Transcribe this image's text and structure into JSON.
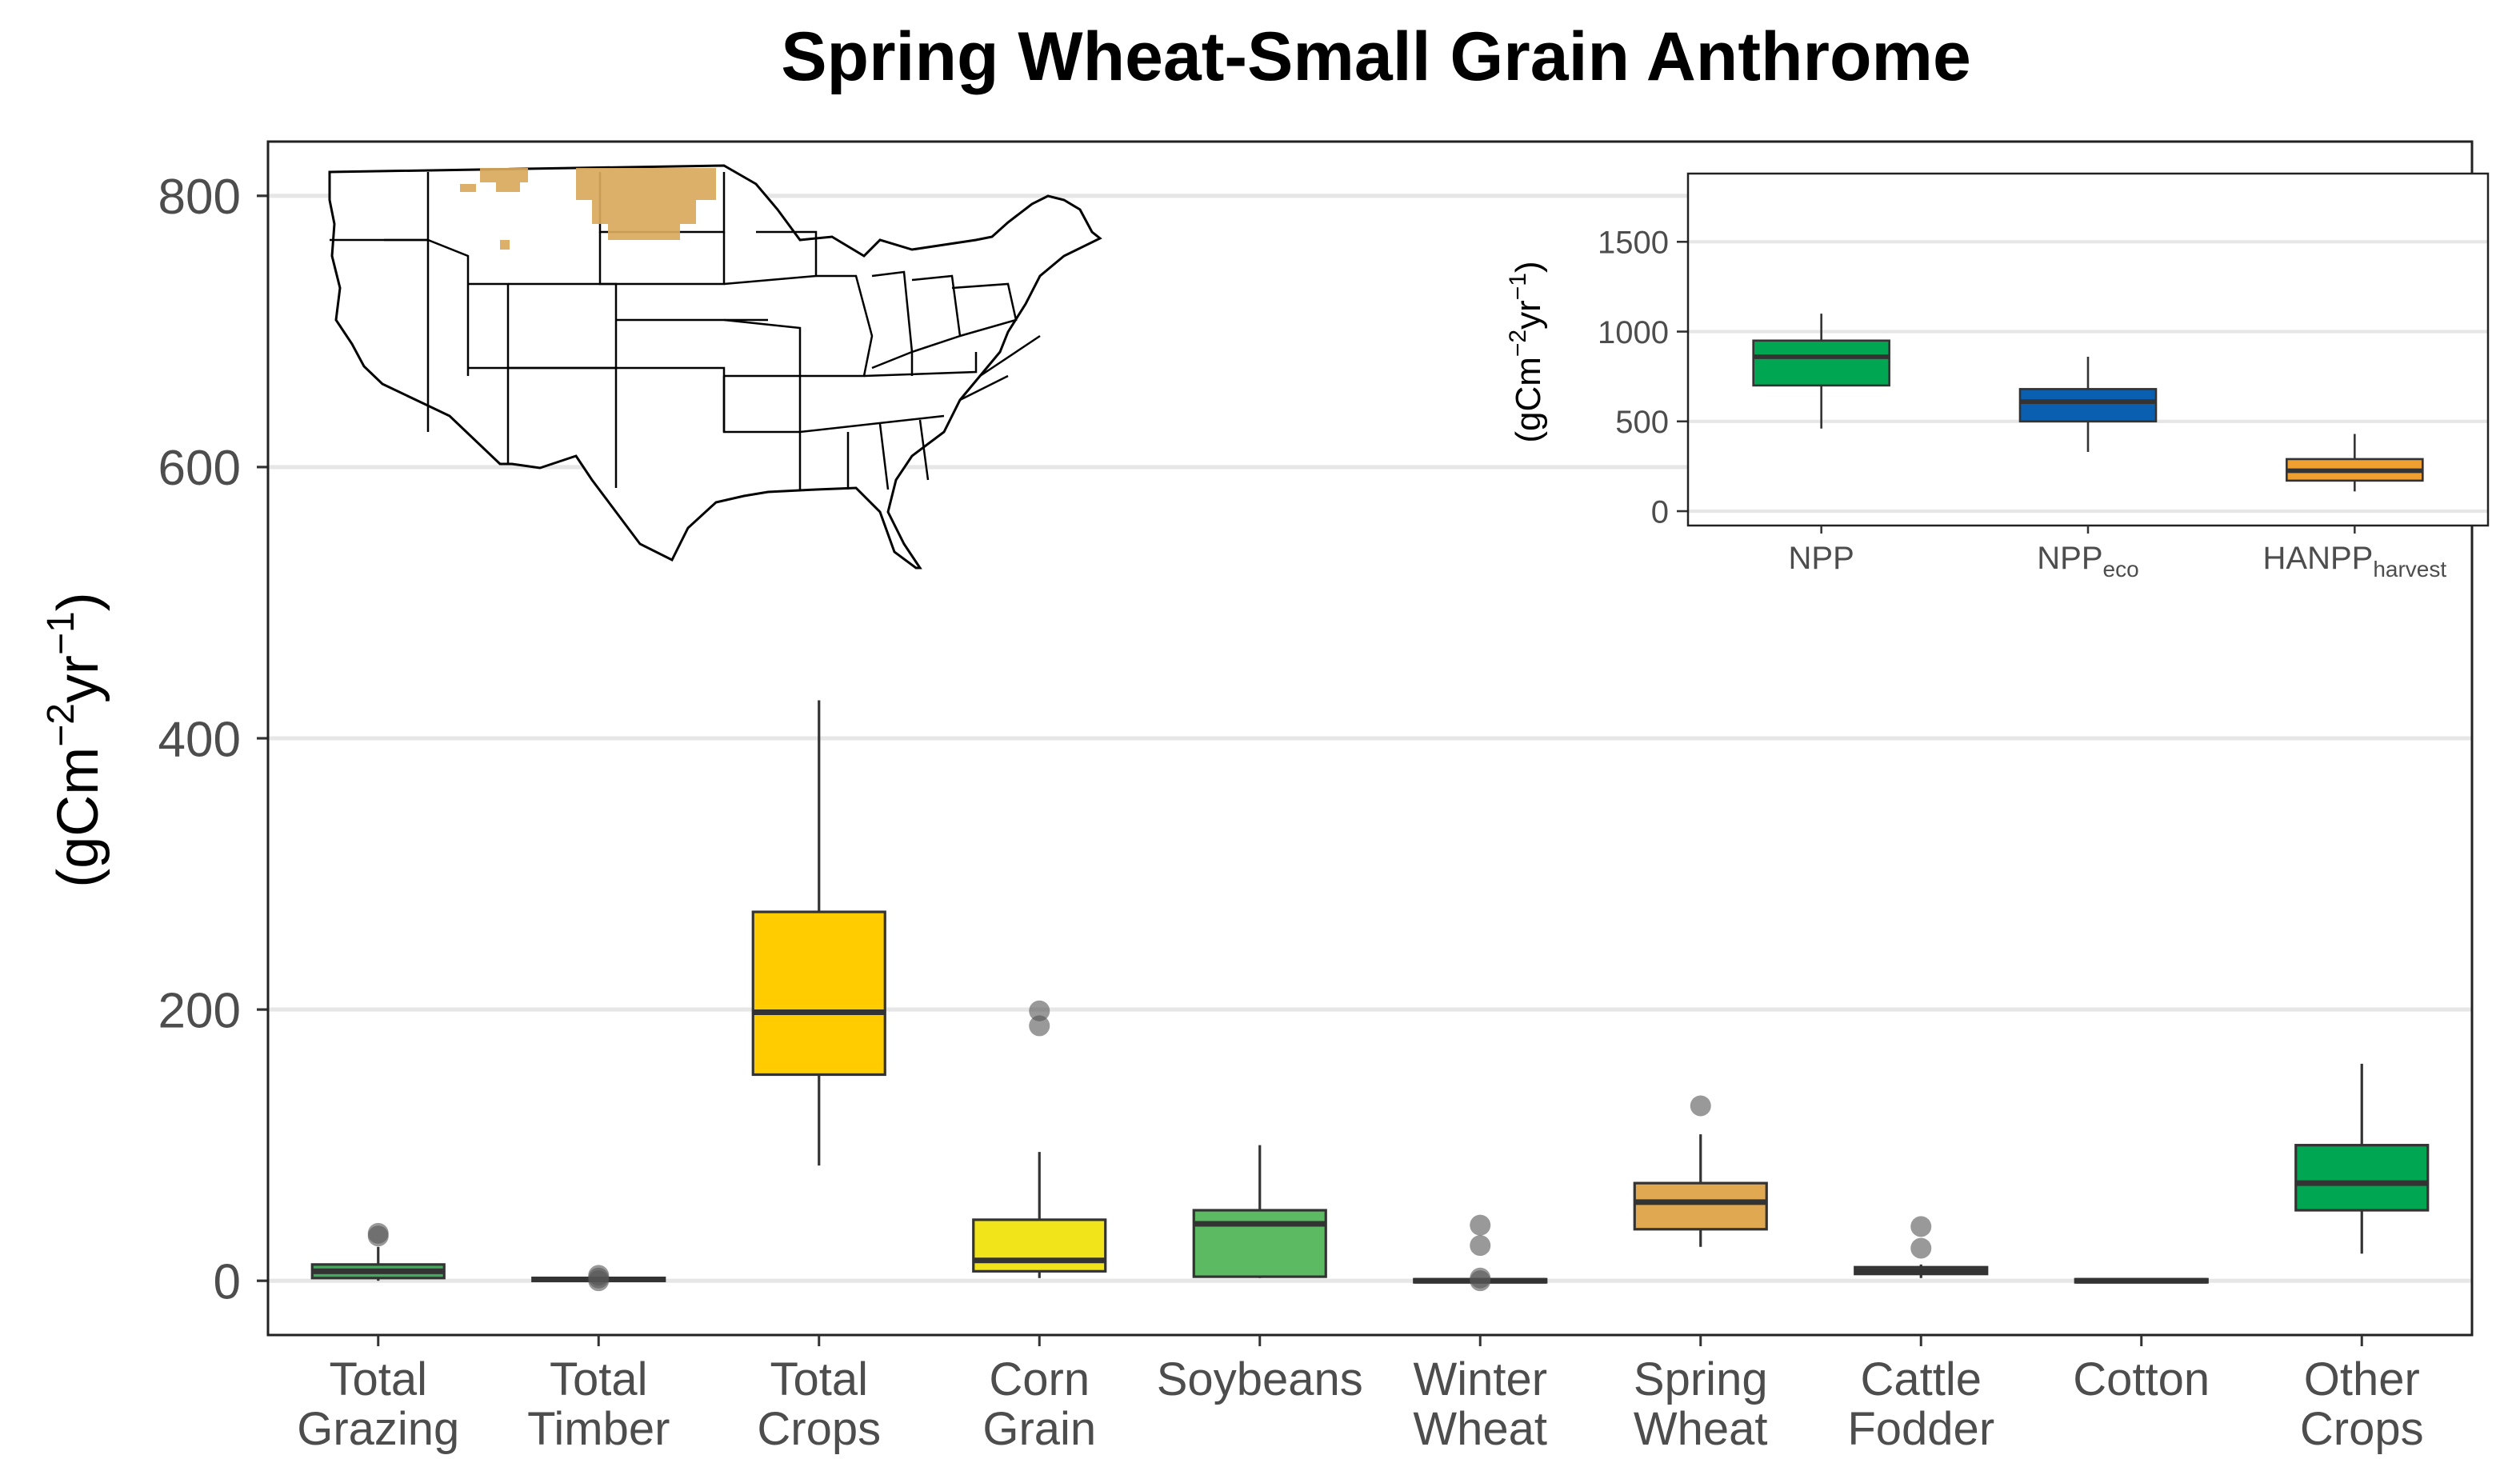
{
  "chart_data": [
    {
      "type": "boxplot",
      "title": "Spring Wheat-Small Grain Anthrome",
      "ylabel": {
        "prefix": "(gCm",
        "sup1": "−2",
        "mid": "yr",
        "sup2": "−1",
        "suffix": ")"
      },
      "ylim": [
        -40,
        840
      ],
      "yticks": [
        0,
        200,
        400,
        600,
        800
      ],
      "grid": true,
      "categories": [
        {
          "line1": "Total",
          "line2": "Grazing",
          "color": "#41ab5d",
          "whisker_low": 0,
          "q1": 2,
          "median": 7,
          "q3": 12,
          "whisker_high": 25,
          "outliers": [
            33,
            35
          ]
        },
        {
          "line1": "Total",
          "line2": "Timber",
          "color": "#41ab5d",
          "whisker_low": 0,
          "q1": 0,
          "median": 1,
          "q3": 2,
          "whisker_high": 3,
          "outliers": [
            0,
            2,
            4
          ]
        },
        {
          "line1": "Total",
          "line2": "Crops",
          "color": "#ffcc00",
          "whisker_low": 85,
          "q1": 152,
          "median": 198,
          "q3": 272,
          "whisker_high": 428,
          "outliers": []
        },
        {
          "line1": "Corn",
          "line2": "Grain",
          "color": "#f2e41a",
          "whisker_low": 2,
          "q1": 7,
          "median": 15,
          "q3": 45,
          "whisker_high": 95,
          "outliers": [
            188,
            199
          ]
        },
        {
          "line1": "Soybeans",
          "line2": "",
          "color": "#5cba63",
          "whisker_low": 2,
          "q1": 3,
          "median": 42,
          "q3": 52,
          "whisker_high": 100,
          "outliers": []
        },
        {
          "line1": "Winter",
          "line2": "Wheat",
          "color": "#41ab5d",
          "whisker_low": 0,
          "q1": 0,
          "median": 0,
          "q3": 1,
          "whisker_high": 2,
          "outliers": [
            0,
            2,
            26,
            41
          ]
        },
        {
          "line1": "Spring",
          "line2": "Wheat",
          "color": "#e0a850",
          "whisker_low": 25,
          "q1": 38,
          "median": 58,
          "q3": 72,
          "whisker_high": 108,
          "outliers": [
            129
          ]
        },
        {
          "line1": "Cattle",
          "line2": "Fodder",
          "color": "#41ab5d",
          "whisker_low": 2,
          "q1": 5,
          "median": 7,
          "q3": 10,
          "whisker_high": 12,
          "outliers": [
            24,
            40
          ]
        },
        {
          "line1": "Cotton",
          "line2": "",
          "color": "#41ab5d",
          "whisker_low": 0,
          "q1": 0,
          "median": 0,
          "q3": 1,
          "whisker_high": 1,
          "outliers": []
        },
        {
          "line1": "Other",
          "line2": "Crops",
          "color": "#00a651",
          "whisker_low": 20,
          "q1": 52,
          "median": 72,
          "q3": 100,
          "whisker_high": 160,
          "outliers": []
        }
      ]
    },
    {
      "type": "boxplot",
      "role": "inset",
      "ylabel": {
        "prefix": "(gCm",
        "sup1": "−2",
        "mid": "yr",
        "sup2": "−1",
        "suffix": ")"
      },
      "ylim": [
        -80,
        1880
      ],
      "yticks": [
        0,
        500,
        1000,
        1500
      ],
      "grid": true,
      "categories": [
        {
          "label": "NPP",
          "sub": "",
          "color": "#00a651",
          "whisker_low": 460,
          "q1": 700,
          "median": 860,
          "q3": 950,
          "whisker_high": 1100,
          "outliers": []
        },
        {
          "label": "NPP",
          "sub": "eco",
          "color": "#0b5fb0",
          "whisker_low": 330,
          "q1": 500,
          "median": 610,
          "q3": 680,
          "whisker_high": 860,
          "outliers": []
        },
        {
          "label": "HANPP",
          "sub": "harvest",
          "color": "#f0a030",
          "whisker_low": 110,
          "q1": 170,
          "median": 225,
          "q3": 290,
          "whisker_high": 430,
          "outliers": []
        }
      ]
    }
  ],
  "map": {
    "name": "contiguous-us-map",
    "highlight_color": "#d9a95b",
    "state_fill": "#ffffff",
    "state_stroke": "#000000"
  }
}
